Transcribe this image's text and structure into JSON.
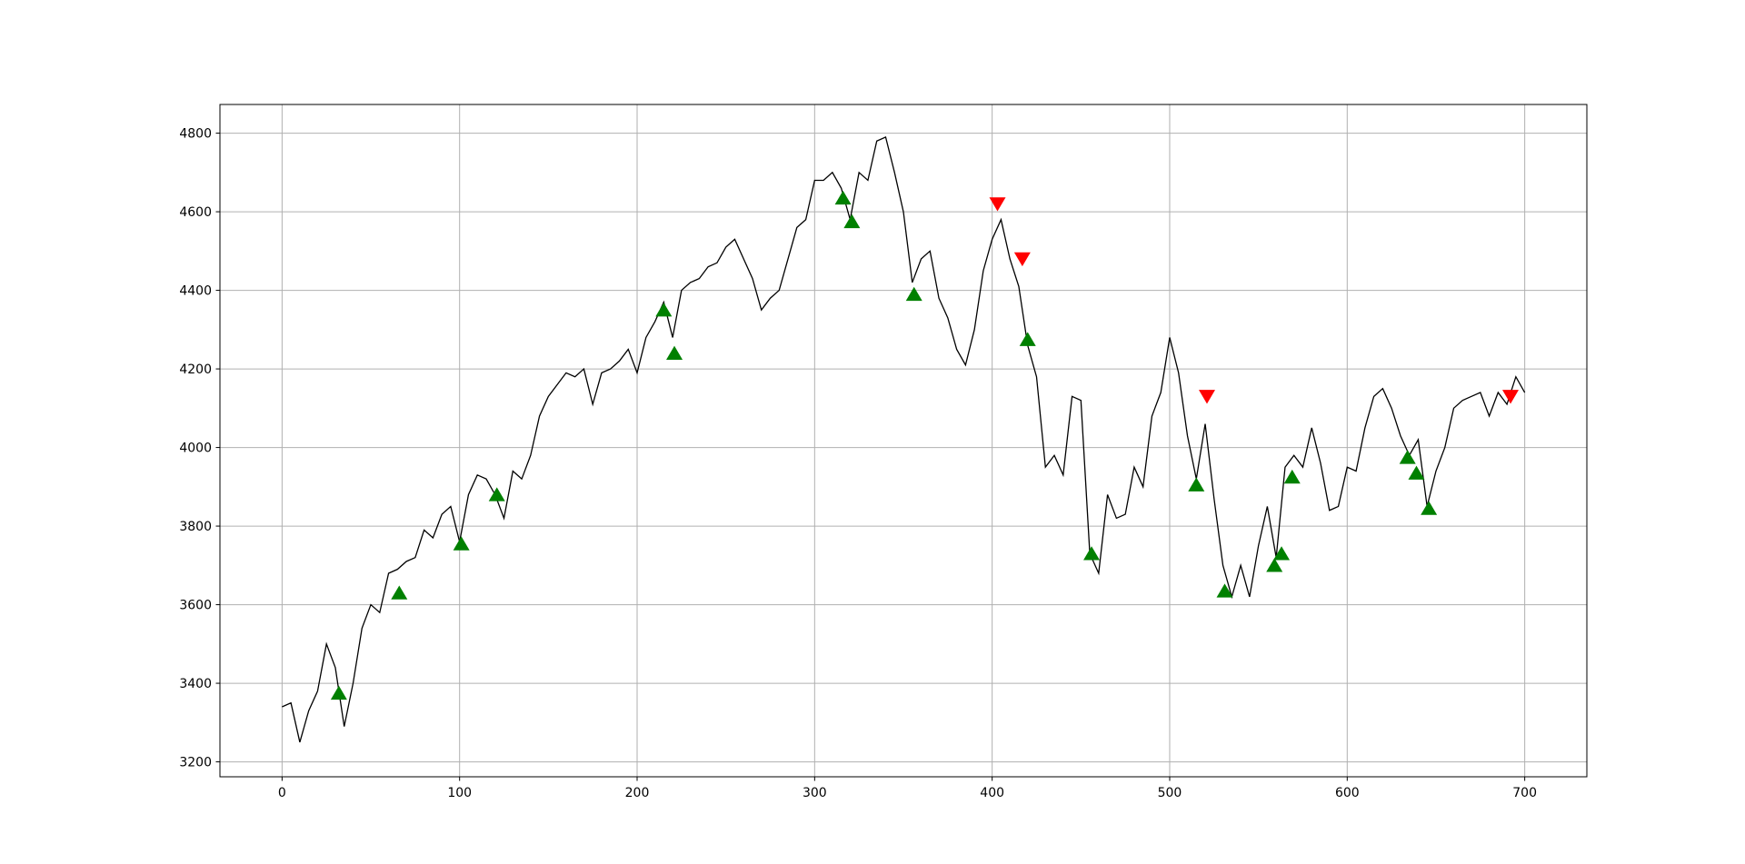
{
  "chart_data": {
    "type": "line",
    "x": [
      0,
      5,
      10,
      15,
      20,
      25,
      30,
      35,
      40,
      45,
      50,
      55,
      60,
      65,
      70,
      75,
      80,
      85,
      90,
      95,
      100,
      105,
      110,
      115,
      120,
      125,
      130,
      135,
      140,
      145,
      150,
      155,
      160,
      165,
      170,
      175,
      180,
      185,
      190,
      195,
      200,
      205,
      210,
      215,
      220,
      225,
      230,
      235,
      240,
      245,
      250,
      255,
      260,
      265,
      270,
      275,
      280,
      285,
      290,
      295,
      300,
      305,
      310,
      315,
      320,
      325,
      330,
      335,
      340,
      345,
      350,
      355,
      360,
      365,
      370,
      375,
      380,
      385,
      390,
      395,
      400,
      405,
      410,
      415,
      420,
      425,
      430,
      435,
      440,
      445,
      450,
      455,
      460,
      465,
      470,
      475,
      480,
      485,
      490,
      495,
      500,
      505,
      510,
      515,
      520,
      525,
      530,
      535,
      540,
      545,
      550,
      555,
      560,
      565,
      570,
      575,
      580,
      585,
      590,
      595,
      600,
      605,
      610,
      615,
      620,
      625,
      630,
      635,
      640,
      645,
      650,
      655,
      660,
      665,
      670,
      675,
      680,
      685,
      690,
      695,
      700
    ],
    "values": [
      3340,
      3350,
      3250,
      3330,
      3380,
      3500,
      3440,
      3290,
      3400,
      3540,
      3600,
      3580,
      3680,
      3690,
      3710,
      3720,
      3790,
      3770,
      3830,
      3850,
      3760,
      3880,
      3930,
      3920,
      3880,
      3820,
      3940,
      3920,
      3980,
      4080,
      4130,
      4160,
      4190,
      4180,
      4200,
      4110,
      4190,
      4200,
      4220,
      4250,
      4190,
      4280,
      4320,
      4370,
      4280,
      4400,
      4420,
      4430,
      4460,
      4470,
      4510,
      4530,
      4480,
      4430,
      4350,
      4380,
      4400,
      4480,
      4560,
      4580,
      4680,
      4680,
      4700,
      4660,
      4580,
      4700,
      4680,
      4780,
      4790,
      4700,
      4600,
      4420,
      4480,
      4500,
      4380,
      4330,
      4250,
      4210,
      4300,
      4450,
      4530,
      4580,
      4480,
      4410,
      4260,
      4180,
      3950,
      3980,
      3930,
      4130,
      4120,
      3730,
      3680,
      3880,
      3820,
      3830,
      3950,
      3900,
      4080,
      4140,
      4280,
      4190,
      4030,
      3920,
      4060,
      3870,
      3700,
      3620,
      3700,
      3620,
      3750,
      3850,
      3720,
      3950,
      3980,
      3950,
      4050,
      3960,
      3840,
      3850,
      3950,
      3940,
      4050,
      4130,
      4150,
      4100,
      4030,
      3980,
      4020,
      3850,
      3940,
      4000,
      4100,
      4120,
      4130,
      4140,
      4080,
      4140,
      4110,
      4180,
      4140
    ],
    "color": "#000000",
    "markers": [
      {
        "marker": "triangle-up",
        "color": "#008000",
        "x": [
          32,
          66,
          101,
          121,
          215,
          221,
          316,
          321,
          356,
          420,
          456,
          515,
          531,
          559,
          563,
          569,
          634,
          639,
          646
        ],
        "values": [
          3375,
          3630,
          3755,
          3880,
          4350,
          4240,
          4635,
          4575,
          4390,
          4275,
          3730,
          3905,
          3635,
          3700,
          3730,
          3925,
          3975,
          3935,
          3845
        ]
      },
      {
        "marker": "triangle-down",
        "color": "#ff0000",
        "x": [
          403,
          417,
          521,
          692
        ],
        "values": [
          4620,
          4480,
          4130,
          4130
        ]
      }
    ],
    "xlim": [
      -35,
      735
    ],
    "ylim": [
      3162,
      4873
    ],
    "xticks": [
      0,
      100,
      200,
      300,
      400,
      500,
      600,
      700
    ],
    "yticks": [
      3200,
      3400,
      3600,
      3800,
      4000,
      4200,
      4400,
      4600,
      4800
    ],
    "grid": true
  }
}
